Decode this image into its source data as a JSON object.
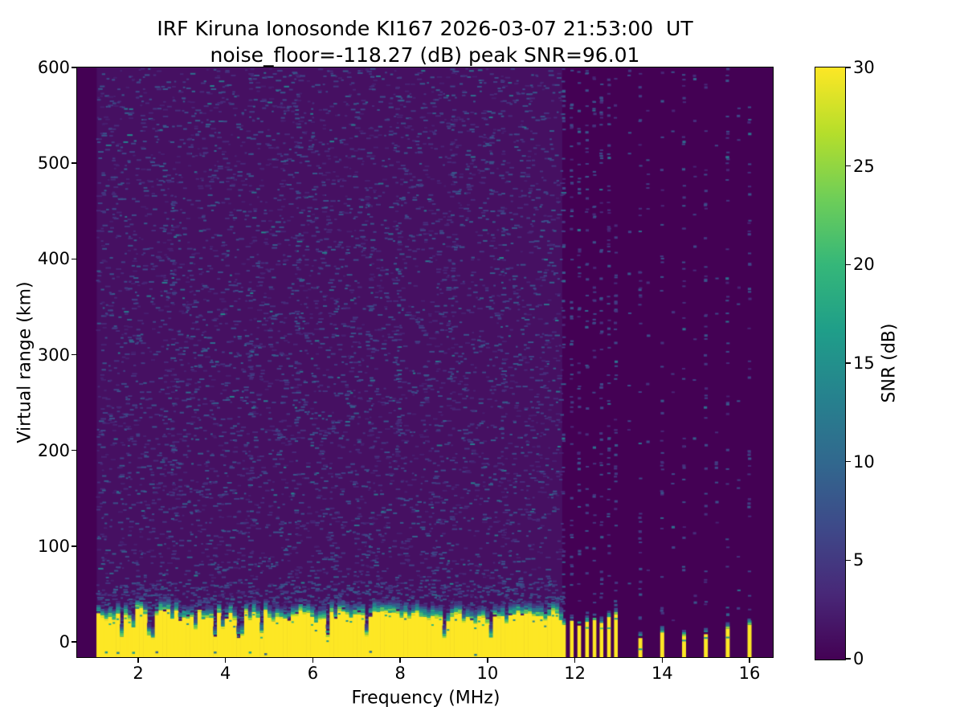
{
  "chart_data": {
    "type": "heatmap",
    "title": "IRF Kiruna Ionosonde KI167 2026-03-07 21:53:00  UT",
    "subtitle": "noise_floor=-118.27 (dB) peak SNR=96.01",
    "station": "KI167",
    "timestamp_ut": "2026-03-07 21:53:00",
    "noise_floor_db": -118.27,
    "peak_snr_db": 96.01,
    "xlabel": "Frequency (MHz)",
    "ylabel": "Virtual range (km)",
    "colorbar_label": "SNR (dB)",
    "x_ticks": [
      2,
      4,
      6,
      8,
      10,
      12,
      14,
      16
    ],
    "y_ticks": [
      0,
      100,
      200,
      300,
      400,
      500,
      600
    ],
    "colorbar_ticks": [
      0,
      5,
      10,
      15,
      20,
      25,
      30
    ],
    "xlim": [
      0.6,
      16.53
    ],
    "ylim": [
      -15,
      600
    ],
    "snr_range": [
      0,
      30
    ],
    "grid": false,
    "colormap": "viridis",
    "colormap_stops": [
      "#440154",
      "#482878",
      "#3e4989",
      "#31688e",
      "#26828e",
      "#1f9e89",
      "#35b779",
      "#6ece58",
      "#b5de2b",
      "#fde725"
    ],
    "swept_band": {
      "freq_start": 1.05,
      "freq_end": 11.71,
      "freq_step": 0.089,
      "background_snr_db": 1.3,
      "echo_top_km_base": 29,
      "echo_top_km_slope_per_mhz": -0.45,
      "echo_top_km_jitter": 14,
      "transition_levels_db": [
        24,
        19,
        14.5,
        10.5,
        7,
        4.5
      ],
      "notch_freqs": [
        1.55,
        2.25,
        3.7,
        4.3,
        6.3,
        7.2,
        9.0,
        10.05
      ],
      "noise_boost_freqs": [
        1.1,
        2.75,
        4.5,
        5.6,
        7.25,
        7.9,
        9.15,
        10.3
      ]
    },
    "stepped_stripes": {
      "cluster": {
        "freqs": [
          11.75,
          11.93,
          12.1,
          12.28,
          12.45,
          12.61,
          12.78,
          12.94
        ],
        "echo_top_km": [
          18,
          22,
          17,
          21,
          23,
          20,
          26,
          29
        ]
      },
      "sparse": {
        "freqs": [
          13.5,
          14.0,
          14.5,
          15.0,
          15.5,
          16.0
        ],
        "echo_top_km": [
          4,
          10,
          6,
          8,
          14,
          18
        ]
      },
      "faint_freqs": [
        13.25,
        13.68,
        14.25,
        14.75,
        15.25,
        15.75
      ]
    },
    "render_seed": 20260307
  }
}
